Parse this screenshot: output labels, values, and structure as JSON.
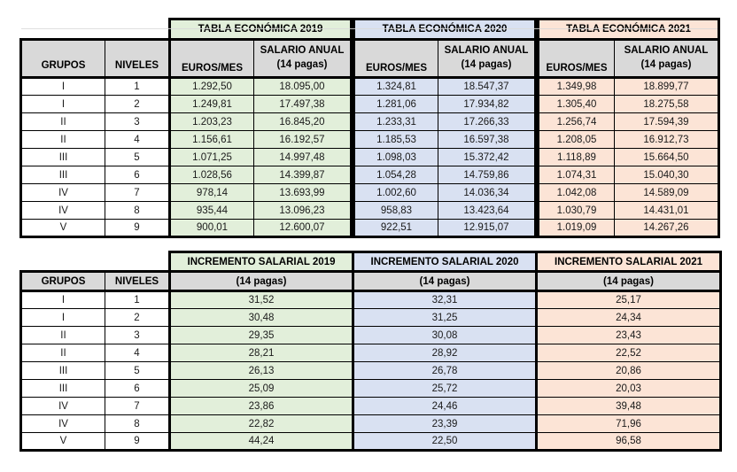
{
  "colors": {
    "year_2019_fill": "#E2EFDA",
    "year_2020_fill": "#D9E1F2",
    "year_2021_fill": "#FCE4D6",
    "header_gray_fill": "#D9D9D9",
    "border": "#000000"
  },
  "table1": {
    "year_headers": [
      "TABLA ECONÓMICA 2019",
      "TABLA ECONÓMICA 2020",
      "TABLA ECONÓMICA 2021"
    ],
    "column_headers": {
      "grupos": "GRUPOS",
      "niveles": "NIVELES",
      "euros_mes": "EUROS/MES",
      "salario_line1": "SALARIO ANUAL",
      "salario_line2": "(14 pagas)"
    },
    "rows": [
      {
        "grupo": "I",
        "nivel": "1",
        "values": [
          "1.292,50",
          "18.095,00",
          "1.324,81",
          "18.547,37",
          "1.349,98",
          "18.899,77"
        ]
      },
      {
        "grupo": "I",
        "nivel": "2",
        "values": [
          "1.249,81",
          "17.497,38",
          "1.281,06",
          "17.934,82",
          "1.305,40",
          "18.275,58"
        ]
      },
      {
        "grupo": "II",
        "nivel": "3",
        "values": [
          "1.203,23",
          "16.845,20",
          "1.233,31",
          "17.266,33",
          "1.256,74",
          "17.594,39"
        ]
      },
      {
        "grupo": "II",
        "nivel": "4",
        "values": [
          "1.156,61",
          "16.192,57",
          "1.185,53",
          "16.597,38",
          "1.208,05",
          "16.912,73"
        ]
      },
      {
        "grupo": "III",
        "nivel": "5",
        "values": [
          "1.071,25",
          "14.997,48",
          "1.098,03",
          "15.372,42",
          "1.118,89",
          "15.664,50"
        ]
      },
      {
        "grupo": "III",
        "nivel": "6",
        "values": [
          "1.028,56",
          "14.399,87",
          "1.054,28",
          "14.759,86",
          "1.074,31",
          "15.040,30"
        ]
      },
      {
        "grupo": "IV",
        "nivel": "7",
        "values": [
          "978,14",
          "13.693,99",
          "1.002,60",
          "14.036,34",
          "1.042,08",
          "14.589,09"
        ]
      },
      {
        "grupo": "IV",
        "nivel": "8",
        "values": [
          "935,44",
          "13.096,23",
          "958,83",
          "13.423,64",
          "1.030,79",
          "14.431,01"
        ]
      },
      {
        "grupo": "V",
        "nivel": "9",
        "values": [
          "900,01",
          "12.600,07",
          "922,51",
          "12.915,07",
          "1.019,09",
          "14.267,26"
        ]
      }
    ]
  },
  "table2": {
    "year_headers": [
      "INCREMENTO SALARIAL 2019",
      "INCREMENTO SALARIAL 2020",
      "INCREMENTO SALARIAL 2021"
    ],
    "column_headers": {
      "grupos": "GRUPOS",
      "niveles": "NIVELES",
      "pagas": "(14 pagas)"
    },
    "rows": [
      {
        "grupo": "I",
        "nivel": "1",
        "values": [
          "31,52",
          "32,31",
          "25,17"
        ]
      },
      {
        "grupo": "I",
        "nivel": "2",
        "values": [
          "30,48",
          "31,25",
          "24,34"
        ]
      },
      {
        "grupo": "II",
        "nivel": "3",
        "values": [
          "29,35",
          "30,08",
          "23,43"
        ]
      },
      {
        "grupo": "II",
        "nivel": "4",
        "values": [
          "28,21",
          "28,92",
          "22,52"
        ]
      },
      {
        "grupo": "III",
        "nivel": "5",
        "values": [
          "26,13",
          "26,78",
          "20,86"
        ]
      },
      {
        "grupo": "III",
        "nivel": "6",
        "values": [
          "25,09",
          "25,72",
          "20,03"
        ]
      },
      {
        "grupo": "IV",
        "nivel": "7",
        "values": [
          "23,86",
          "24,46",
          "39,48"
        ]
      },
      {
        "grupo": "IV",
        "nivel": "8",
        "values": [
          "22,82",
          "23,39",
          "71,96"
        ]
      },
      {
        "grupo": "V",
        "nivel": "9",
        "values": [
          "44,24",
          "22,50",
          "96,58"
        ]
      }
    ]
  }
}
